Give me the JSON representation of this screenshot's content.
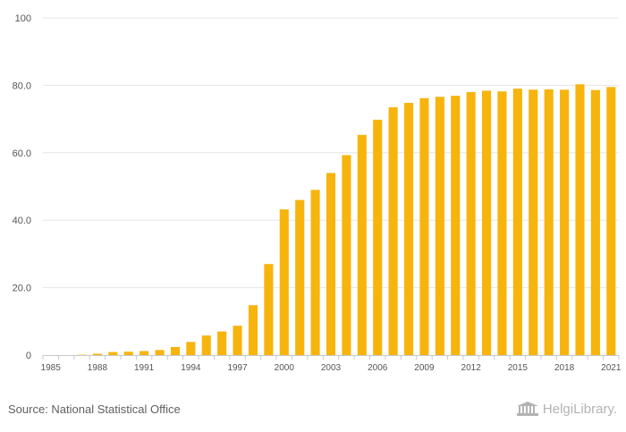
{
  "chart_data": {
    "type": "bar",
    "title": "",
    "xlabel": "",
    "ylabel": "",
    "ylim": [
      0,
      100
    ],
    "yticks": [
      0,
      20.0,
      40.0,
      60.0,
      80.0,
      100
    ],
    "ytick_labels": [
      "0",
      "20.0",
      "40.0",
      "60.0",
      "80.0",
      "100"
    ],
    "bar_color": "#f6b40d",
    "categories": [
      "1985",
      "1986",
      "1987",
      "1988",
      "1989",
      "1990",
      "1991",
      "1992",
      "1993",
      "1994",
      "1995",
      "1996",
      "1997",
      "1998",
      "1999",
      "2000",
      "2001",
      "2002",
      "2003",
      "2004",
      "2005",
      "2006",
      "2007",
      "2008",
      "2009",
      "2010",
      "2011",
      "2012",
      "2013",
      "2014",
      "2015",
      "2016",
      "2017",
      "2018",
      "2019",
      "2020",
      "2021"
    ],
    "xtick_labels": [
      "1985",
      "1988",
      "1991",
      "1994",
      "1997",
      "2000",
      "2003",
      "2006",
      "2009",
      "2012",
      "2015",
      "2018",
      "2021"
    ],
    "values": [
      0,
      0,
      0.1,
      0.4,
      0.9,
      1.0,
      1.2,
      1.5,
      2.4,
      3.9,
      5.8,
      7.0,
      8.7,
      14.8,
      27.0,
      43.2,
      46.0,
      49.0,
      54.0,
      59.3,
      65.3,
      69.8,
      73.5,
      74.8,
      76.2,
      76.6,
      76.9,
      78.0,
      78.4,
      78.2,
      79.0,
      78.7,
      78.8,
      78.7,
      80.3,
      78.6,
      79.5
    ]
  },
  "footer": {
    "source": "Source: National Statistical Office",
    "brand": "HelgiLibrary."
  }
}
